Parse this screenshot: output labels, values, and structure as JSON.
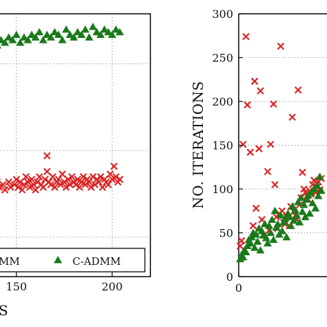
{
  "chart_data": [
    {
      "type": "scatter",
      "title": "",
      "xlabel": "S",
      "ylabel": "",
      "xlim": [
        140,
        220
      ],
      "x_ticks": [
        150,
        200
      ],
      "x_tick_labels": [
        "150",
        "200"
      ],
      "grid": true,
      "legend_placement": "bottom",
      "legend_entries": [
        "MM",
        "C-ADMM"
      ],
      "series": [
        {
          "name": "MM",
          "marker": "x",
          "color": "#dd2222",
          "x": [
            140,
            141,
            143,
            144,
            146,
            147,
            149,
            150,
            151,
            152,
            153,
            154,
            155,
            156,
            157,
            158,
            159,
            160,
            161,
            162,
            163,
            164,
            165,
            166,
            166,
            167,
            168,
            169,
            170,
            171,
            172,
            173,
            174,
            175,
            176,
            177,
            178,
            179,
            180,
            181,
            182,
            183,
            184,
            185,
            186,
            187,
            188,
            189,
            190,
            191,
            192,
            193,
            194,
            195,
            196,
            197,
            198,
            199,
            200,
            201,
            202,
            203,
            204
          ],
          "y": [
            0.36,
            0.34,
            0.35,
            0.33,
            0.36,
            0.34,
            0.35,
            0.37,
            0.34,
            0.36,
            0.33,
            0.35,
            0.38,
            0.36,
            0.34,
            0.37,
            0.35,
            0.33,
            0.36,
            0.38,
            0.35,
            0.34,
            0.37,
            0.46,
            0.4,
            0.36,
            0.35,
            0.38,
            0.34,
            0.36,
            0.37,
            0.35,
            0.39,
            0.36,
            0.34,
            0.37,
            0.35,
            0.38,
            0.36,
            0.35,
            0.37,
            0.34,
            0.36,
            0.38,
            0.35,
            0.37,
            0.36,
            0.34,
            0.38,
            0.35,
            0.37,
            0.36,
            0.38,
            0.34,
            0.37,
            0.36,
            0.35,
            0.39,
            0.37,
            0.42,
            0.38,
            0.36,
            0.37
          ]
        },
        {
          "name": "C-ADMM",
          "marker": "triangle",
          "color": "#1a7a1a",
          "x": [
            140,
            142,
            144,
            146,
            148,
            150,
            152,
            154,
            156,
            158,
            160,
            162,
            164,
            166,
            168,
            170,
            172,
            174,
            176,
            178,
            180,
            182,
            184,
            186,
            188,
            190,
            192,
            194,
            196,
            198,
            200,
            202,
            204
          ],
          "y": [
            0.88,
            0.9,
            0.89,
            0.91,
            0.9,
            0.92,
            0.89,
            0.91,
            0.9,
            0.92,
            0.91,
            0.93,
            0.9,
            0.92,
            0.91,
            0.93,
            0.92,
            0.9,
            0.94,
            0.92,
            0.91,
            0.93,
            0.92,
            0.94,
            0.91,
            0.95,
            0.93,
            0.92,
            0.94,
            0.93,
            0.92,
            0.94,
            0.93
          ]
        }
      ]
    },
    {
      "type": "scatter",
      "title": "",
      "xlabel": "",
      "ylabel": "NO. ITERATIONS",
      "ylim": [
        0,
        300
      ],
      "y_ticks": [
        0,
        50,
        100,
        150,
        200,
        250,
        300
      ],
      "y_tick_labels": [
        "0",
        "50",
        "100",
        "150",
        "200",
        "250",
        "300"
      ],
      "x_ticks": [
        0
      ],
      "x_tick_labels": [
        "0"
      ],
      "grid": true,
      "series": [
        {
          "marker": "x",
          "color": "#dd2222",
          "x": [
            1,
            2,
            3,
            5,
            6,
            8,
            10,
            11,
            12,
            14,
            15,
            16,
            18,
            20,
            21,
            22,
            24,
            25,
            26,
            27,
            28,
            29,
            30,
            31,
            32,
            33,
            35,
            36,
            37,
            38,
            39,
            40,
            41,
            42,
            43,
            44,
            45,
            46,
            47,
            48,
            49,
            50,
            51,
            52,
            53,
            54,
            55,
            56,
            57
          ],
          "y": [
            35,
            41,
            151,
            274,
            196,
            142,
            58,
            223,
            78,
            146,
            212,
            65,
            48,
            120,
            53,
            151,
            197,
            105,
            68,
            55,
            72,
            263,
            75,
            62,
            60,
            68,
            58,
            80,
            182,
            74,
            70,
            65,
            213,
            82,
            90,
            119,
            100,
            96,
            92,
            88,
            98,
            94,
            105,
            110,
            96,
            102,
            108,
            99,
            112
          ]
        },
        {
          "marker": "triangle",
          "color": "#1a7a1a",
          "x": [
            1,
            2,
            3,
            4,
            5,
            6,
            7,
            8,
            9,
            10,
            11,
            12,
            13,
            14,
            15,
            16,
            17,
            18,
            19,
            20,
            21,
            22,
            23,
            24,
            25,
            26,
            27,
            28,
            29,
            30,
            31,
            32,
            33,
            34,
            35,
            36,
            37,
            38,
            39,
            40,
            41,
            42,
            43,
            44,
            45,
            46,
            47,
            48,
            49,
            50,
            51,
            52,
            53,
            54,
            55,
            56,
            57
          ],
          "y": [
            20,
            25,
            22,
            30,
            28,
            35,
            42,
            38,
            45,
            50,
            33,
            48,
            40,
            55,
            30,
            52,
            47,
            60,
            44,
            38,
            58,
            50,
            65,
            42,
            75,
            56,
            60,
            48,
            70,
            52,
            62,
            66,
            45,
            72,
            68,
            58,
            80,
            64,
            76,
            70,
            85,
            62,
            90,
            74,
            82,
            68,
            88,
            93,
            72,
            96,
            84,
            100,
            78,
            104,
            92,
            114,
            98
          ]
        }
      ]
    }
  ]
}
